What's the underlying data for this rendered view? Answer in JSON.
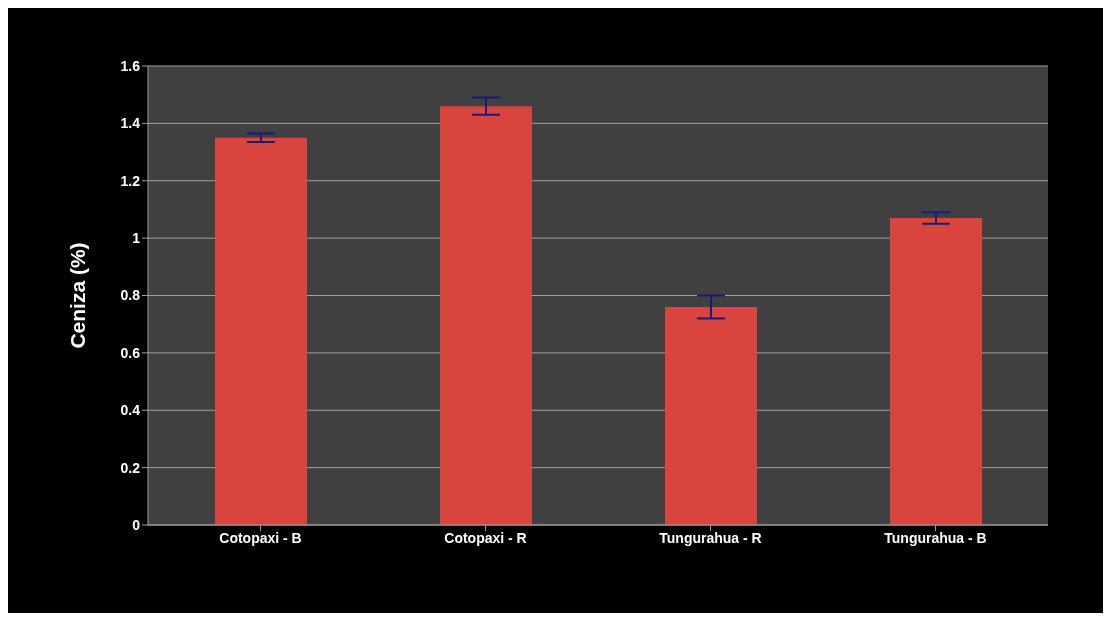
{
  "chart_data": {
    "type": "bar",
    "ylabel": "Ceniza (%)",
    "categories": [
      "Cotopaxi - B",
      "Cotopaxi - R",
      "Tungurahua  - R",
      "Tungurahua - B"
    ],
    "values": [
      1.35,
      1.46,
      0.76,
      1.07
    ],
    "errors": [
      0.015,
      0.03,
      0.04,
      0.02
    ],
    "color": "#d9443f",
    "ylim": [
      0,
      1.6
    ],
    "yticks": [
      0,
      0.2,
      0.4,
      0.6,
      0.8,
      1,
      1.2,
      1.4,
      1.6
    ],
    "grid": "y"
  }
}
